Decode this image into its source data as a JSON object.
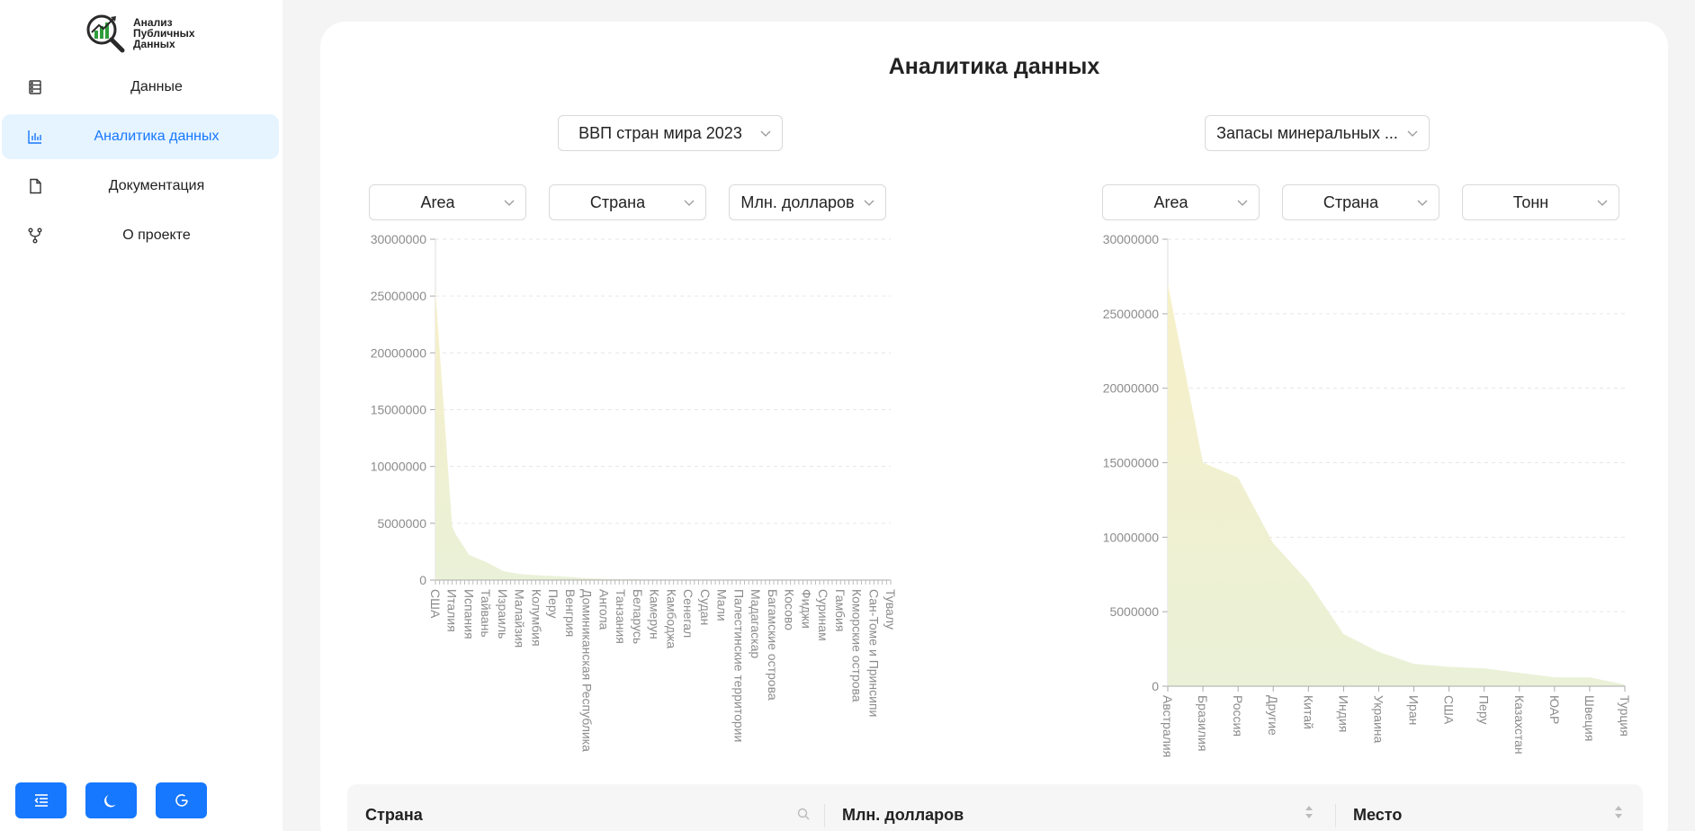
{
  "sidebar": {
    "logo_lines": [
      "Анализ",
      "Публичных",
      "Данных"
    ],
    "items": [
      {
        "label": "Данные",
        "icon": "database-icon",
        "active": false
      },
      {
        "label": "Аналитика данных",
        "icon": "bar-chart-icon",
        "active": true
      },
      {
        "label": "Документация",
        "icon": "file-icon",
        "active": false
      },
      {
        "label": "О проекте",
        "icon": "fork-icon",
        "active": false
      }
    ],
    "bottom_buttons": [
      "collapse-menu-icon",
      "moon-icon",
      "refresh-icon"
    ]
  },
  "main": {
    "title": "Аналитика данных",
    "left": {
      "dataset": "ВВП стран мира 2023",
      "chart_type": "Area",
      "x_field": "Страна",
      "y_field": "Млн. долларов"
    },
    "right": {
      "dataset": "Запасы минеральных ...",
      "chart_type": "Area",
      "x_field": "Страна",
      "y_field": "Тонн"
    },
    "table": {
      "columns": [
        "Страна",
        "Млн. долларов",
        "Место"
      ]
    }
  },
  "colors": {
    "accent": "#1677ff",
    "active_bg": "#e6f4ff",
    "area_fill_top": "#f7f0c8",
    "area_fill_bottom": "#eaf1d8",
    "grid": "#e6e6e6",
    "axis_text": "#8c8c8c"
  },
  "chart_data": [
    {
      "type": "area",
      "ylim": [
        0,
        30000000
      ],
      "yticks": [
        0,
        5000000,
        10000000,
        15000000,
        20000000,
        25000000,
        30000000
      ],
      "x_labels": [
        "США",
        "Италия",
        "Испания",
        "Тайвань",
        "Израиль",
        "Малайзия",
        "Колумбия",
        "Перу",
        "Венгрия",
        "Доминиканская Республика",
        "Ангола",
        "Танзания",
        "Беларусь",
        "Камерун",
        "Камбоджа",
        "Сенегал",
        "Судан",
        "Мали",
        "Палестинские территории",
        "Мадагаскар",
        "Багамские острова",
        "Косово",
        "Фиджи",
        "Суринам",
        "Гамбия",
        "Коморские острова",
        "Сан-Томе и Принсипи",
        "Тувалу"
      ],
      "values": [
        25500000,
        4500000,
        2200000,
        1600000,
        800000,
        530000,
        430000,
        360000,
        270000,
        160000,
        110000,
        85000,
        70000,
        50000,
        40000,
        30000,
        25000,
        20000,
        18000,
        15000,
        12000,
        9000,
        5000,
        4000,
        2000,
        1500,
        600,
        60
      ],
      "grid": true
    },
    {
      "type": "area",
      "ylim": [
        0,
        30000000
      ],
      "yticks": [
        0,
        5000000,
        10000000,
        15000000,
        20000000,
        25000000,
        30000000
      ],
      "categories": [
        "Австралия",
        "Бразилия",
        "Россия",
        "Другие",
        "Китай",
        "Индия",
        "Украина",
        "Иран",
        "США",
        "Перу",
        "Казахстан",
        "ЮАР",
        "Швеция",
        "Турция"
      ],
      "values": [
        27000000,
        15000000,
        14000000,
        9600000,
        7000000,
        3500000,
        2300000,
        1500000,
        1300000,
        1200000,
        900000,
        600000,
        600000,
        100000
      ],
      "grid": true
    }
  ]
}
